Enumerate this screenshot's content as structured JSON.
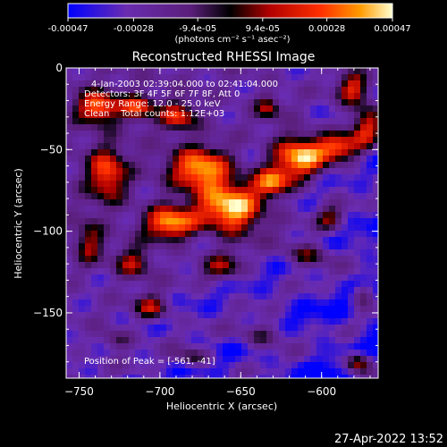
{
  "chart_data": {
    "type": "heatmap",
    "title": "Reconstructed RHESSI Image",
    "xlabel": "Heliocentric X (arcsec)",
    "ylabel": "Heliocentric Y (arcsec)",
    "xlim": [
      -758,
      -565
    ],
    "ylim": [
      -190,
      0
    ],
    "x_ticks": [
      -750,
      -700,
      -650,
      -600
    ],
    "y_ticks": [
      0,
      -50,
      -100,
      -150
    ],
    "colorbar": {
      "range": [
        -0.00047,
        0.00047
      ],
      "tick_values": [
        -0.00047,
        -0.00028,
        -9.4e-05,
        9.4e-05,
        0.00028,
        0.00047
      ],
      "tick_labels": [
        "-0.00047",
        "-0.00028",
        "-9.4e-05",
        "9.4e-05",
        "0.00028",
        "0.00047"
      ],
      "unit_label": "(photons cm⁻² s⁻¹ asec⁻²)"
    },
    "annotations": {
      "time_range": "4-Jan-2003 02:39:04.000 to 02:41:04.000",
      "detectors": "Detectors: 3F 4F 5F 6F 7F 8F, Att 0",
      "energy": "Energy Range: 12.0 - 25.0 keV",
      "clean": "Clean    Total counts: 1.12E+03",
      "peak": "Position of Peak = [-561, -41]"
    },
    "peak_position": [
      -561,
      -41
    ],
    "colormap": [
      "#0000ff",
      "#6a2cb0",
      "#5a1e7a",
      "#000000",
      "#b00000",
      "#ff3000",
      "#ff9a00",
      "#ffffd0"
    ]
  },
  "footer": {
    "timestamp": "27-Apr-2022 13:52"
  }
}
